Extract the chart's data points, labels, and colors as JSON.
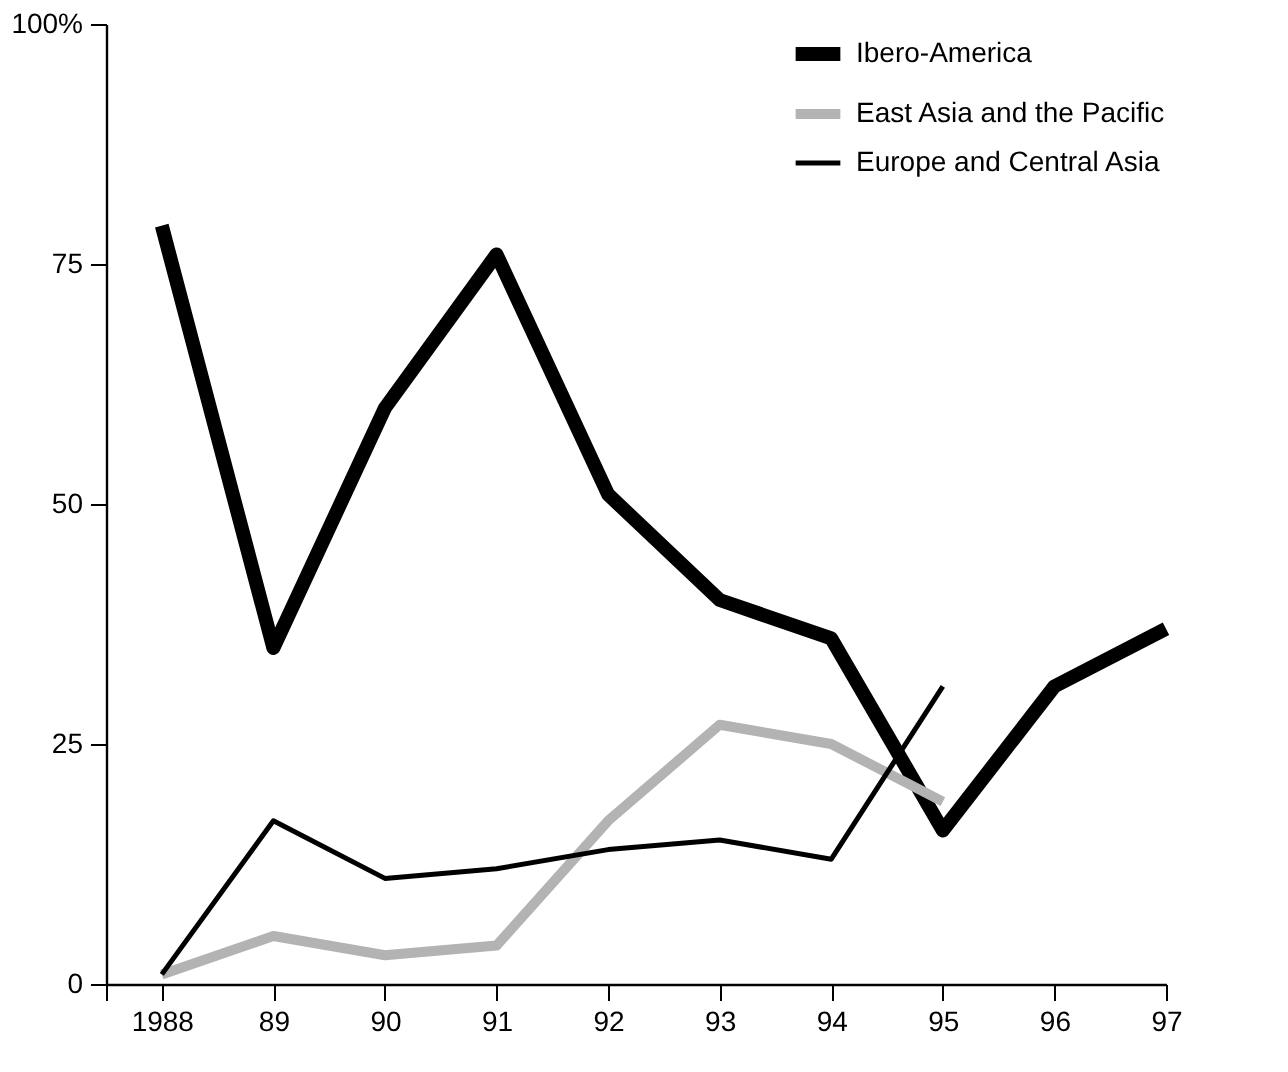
{
  "chart_data": {
    "type": "line",
    "x": [
      1988,
      1989,
      1990,
      1991,
      1992,
      1993,
      1994,
      1995,
      1996,
      1997
    ],
    "series": [
      {
        "name": "Ibero-America",
        "color": "#000000",
        "values": [
          79,
          35,
          60,
          76,
          51,
          40,
          36,
          16,
          31,
          37
        ]
      },
      {
        "name": "East Asia and the Pacific",
        "color": "#b3b3b3",
        "values": [
          1,
          5,
          3,
          4,
          17,
          27,
          25,
          19,
          null,
          null
        ]
      },
      {
        "name": "Europe and Central Asia",
        "color": "#000000",
        "values": [
          1,
          17,
          11,
          12,
          14,
          15,
          13,
          31,
          null,
          null
        ]
      }
    ],
    "xlim": [
      1987.5,
      1997
    ],
    "xticks": [
      {
        "value": 1987.5,
        "label": null
      },
      1988,
      {
        "value": 1989,
        "label": "89"
      },
      {
        "value": 1990,
        "label": "90"
      },
      {
        "value": 1991,
        "label": "91"
      },
      {
        "value": 1992,
        "label": "92"
      },
      {
        "value": 1993,
        "label": "93"
      },
      {
        "value": 1994,
        "label": "94"
      },
      {
        "value": 1995,
        "label": "95"
      },
      {
        "value": 1996,
        "label": "96"
      },
      {
        "value": 1997,
        "label": "97"
      }
    ],
    "ylim": [
      0,
      100
    ],
    "yticks": [
      0,
      25,
      50,
      75,
      {
        "value": 100,
        "label": "100%"
      }
    ],
    "grid": false,
    "legend": "top right",
    "marker": "none",
    "line_style": "solid"
  }
}
